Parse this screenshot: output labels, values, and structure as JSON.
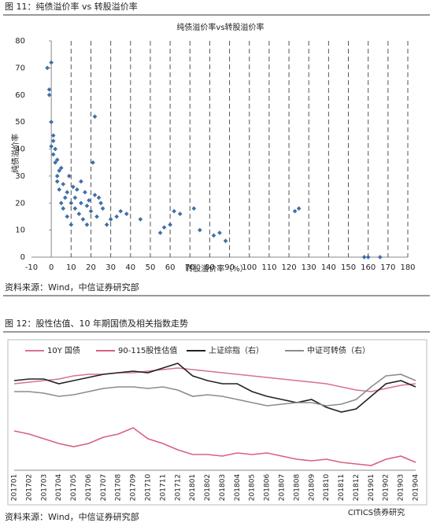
{
  "figure_11": {
    "caption": "图 11：纯债溢价率 vs 转股溢价率",
    "source": "资料来源：Wind，中信证券研究部"
  },
  "figure_12": {
    "caption": "图 12：股性估值、10 年期国债及相关指数走势",
    "source": "资料来源：Wind，中信证券研究部"
  },
  "watermark": "CITICS债券研究",
  "chart_data": [
    {
      "type": "scatter",
      "title": "纯债溢价率vs转股溢价率",
      "x_label": "转股溢价率（%）",
      "y_label": "纯债溢价率",
      "color": "#3f6fa8",
      "grid": "dashed-x",
      "xlim": [
        -10,
        180
      ],
      "xticks": [
        -10,
        0,
        10,
        20,
        30,
        40,
        50,
        60,
        70,
        80,
        90,
        100,
        110,
        120,
        130,
        140,
        150,
        160,
        170,
        180
      ],
      "ylim": [
        0,
        80
      ],
      "yticks": [
        0,
        10,
        20,
        30,
        40,
        50,
        60,
        70,
        80
      ],
      "x": [
        -2,
        -1,
        0,
        0,
        1,
        1,
        2,
        2,
        3,
        3,
        4,
        5,
        5,
        6,
        6,
        7,
        8,
        8,
        9,
        10,
        10,
        11,
        12,
        12,
        13,
        14,
        15,
        15,
        16,
        17,
        18,
        18,
        19,
        20,
        21,
        22,
        22,
        23,
        24,
        25,
        26,
        28,
        30,
        33,
        35,
        38,
        45,
        55,
        57,
        60,
        62,
        65,
        72,
        75,
        82,
        85,
        88,
        123,
        125,
        158,
        160,
        166,
        -1,
        0,
        1,
        3,
        4
      ],
      "values": [
        70,
        60,
        50,
        72,
        45,
        38,
        40,
        35,
        30,
        28,
        25,
        20,
        33,
        18,
        27,
        22,
        24,
        15,
        30,
        20,
        12,
        26,
        18,
        22,
        25,
        16,
        20,
        28,
        14,
        24,
        12,
        19,
        21,
        17,
        35,
        23,
        52,
        15,
        22,
        20,
        18,
        12,
        14,
        15,
        17,
        16,
        14,
        9,
        11,
        12,
        17,
        16,
        18,
        10,
        8,
        9,
        6,
        17,
        18,
        0,
        0,
        0,
        62,
        41,
        43,
        36,
        32
      ]
    },
    {
      "type": "line",
      "categories": [
        "201701",
        "201702",
        "201703",
        "201704",
        "201705",
        "201706",
        "201707",
        "201708",
        "201709",
        "201710",
        "201711",
        "201712",
        "201801",
        "201802",
        "201803",
        "201804",
        "201805",
        "201806",
        "201807",
        "201808",
        "201809",
        "201810",
        "201811",
        "201812",
        "201901",
        "201902",
        "201903",
        "201904"
      ],
      "series": [
        {
          "name": "10Y 国债",
          "color": "#d9738c",
          "values": [
            60,
            61,
            62,
            63,
            65,
            66,
            66,
            67,
            67,
            68,
            69,
            70,
            69,
            68,
            67,
            66,
            65,
            64,
            63,
            62,
            61,
            60,
            58,
            56,
            55,
            57,
            59,
            60
          ]
        },
        {
          "name": "90-115股性估值",
          "color": "#d9607e",
          "values": [
            30,
            28,
            25,
            22,
            20,
            22,
            26,
            28,
            32,
            25,
            22,
            18,
            15,
            15,
            14,
            16,
            15,
            16,
            14,
            12,
            11,
            12,
            10,
            9,
            8,
            12,
            14,
            10
          ]
        },
        {
          "name": "上证综指（右）",
          "color": "#222222",
          "values": [
            62,
            63,
            63,
            60,
            62,
            64,
            66,
            67,
            68,
            67,
            70,
            73,
            65,
            62,
            60,
            60,
            55,
            52,
            50,
            48,
            50,
            45,
            42,
            44,
            52,
            60,
            62,
            58
          ]
        },
        {
          "name": "中证可转债（右）",
          "color": "#8c8c8c",
          "values": [
            55,
            55,
            54,
            52,
            53,
            55,
            57,
            58,
            58,
            57,
            58,
            56,
            52,
            53,
            52,
            50,
            48,
            46,
            47,
            48,
            48,
            46,
            47,
            50,
            58,
            65,
            66,
            62
          ]
        }
      ]
    }
  ]
}
